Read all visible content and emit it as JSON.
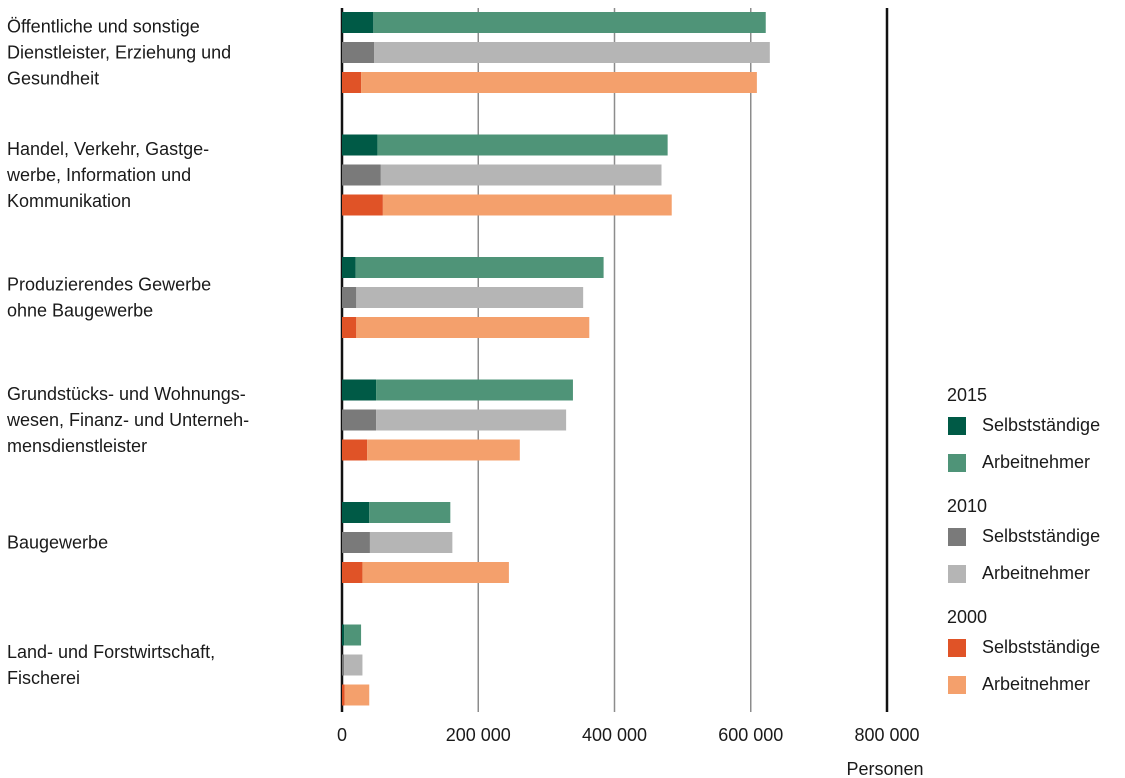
{
  "chart_data": {
    "type": "bar",
    "orientation": "horizontal",
    "stacked": true,
    "categories": [
      [
        "Öffentliche und sonstige",
        "Dienstleister, Erziehung und",
        "Gesundheit"
      ],
      [
        "Handel, Verkehr, Gastge-",
        "werbe, Information und",
        "Kommunikation"
      ],
      [
        "Produzierendes Gewerbe",
        "ohne Baugewerbe"
      ],
      [
        "Grundstücks- und Wohnungs-",
        "wesen, Finanz- und Unterneh-",
        "mensdienstleister"
      ],
      [
        "Baugewerbe"
      ],
      [
        "Land- und Forstwirtschaft,",
        "Fischerei"
      ]
    ],
    "groups": [
      {
        "year": "2015",
        "series": [
          {
            "name": "Selbstständige",
            "color": "#005a46",
            "values": [
              46000,
              52000,
              20000,
              50000,
              40000,
              3000
            ]
          },
          {
            "name": "Arbeitnehmer",
            "color": "#4f9478",
            "values": [
              576000,
              426000,
              364000,
              289000,
              119000,
              25000
            ]
          }
        ]
      },
      {
        "year": "2010",
        "series": [
          {
            "name": "Selbstständige",
            "color": "#7a7a7a",
            "values": [
              47000,
              57000,
              21000,
              50000,
              41000,
              3000
            ]
          },
          {
            "name": "Arbeitnehmer",
            "color": "#b5b5b5",
            "values": [
              581000,
              412000,
              333000,
              279000,
              121000,
              27000
            ]
          }
        ]
      },
      {
        "year": "2000",
        "series": [
          {
            "name": "Selbstständige",
            "color": "#e05327",
            "values": [
              28000,
              60000,
              21000,
              37000,
              30000,
              4000
            ]
          },
          {
            "name": "Arbeitnehmer",
            "color": "#f4a06c",
            "values": [
              581000,
              424000,
              342000,
              224000,
              215000,
              36000
            ]
          }
        ]
      }
    ],
    "x_ticks": [
      0,
      200000,
      400000,
      600000,
      800000
    ],
    "x_tick_labels": [
      "0",
      "200 000",
      "400 000",
      "600 000",
      "800 000"
    ],
    "xlim": [
      0,
      800000
    ],
    "xlabel": "Personen",
    "grid": true,
    "legend_position": "right"
  }
}
